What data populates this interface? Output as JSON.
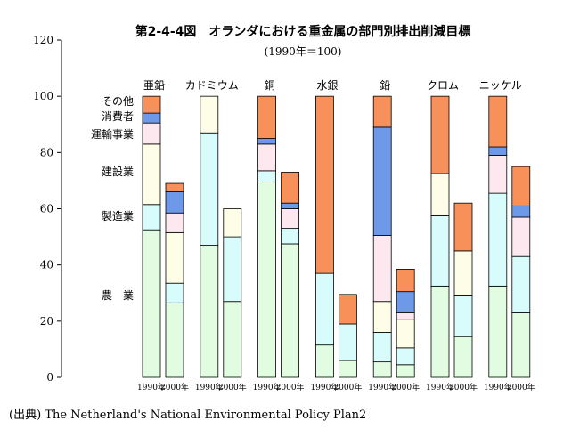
{
  "title": "第2-4-4図　オランダにおける重金属の部門別排出削減目標",
  "subtitle": "(1990年＝100)",
  "source": "(出典) The Netherland's National Environmental Policy Plan2",
  "colors": {
    "農業": "#e2fce2",
    "製造業": "#d8fcfc",
    "建設業": "#fefee8",
    "運輸事業": "#fde8f0",
    "消費者": "#6d99e8",
    "その他": "#f8905a"
  },
  "chart_data": {
    "type": "bar",
    "stacked": true,
    "title": "第2-4-4図　オランダにおける重金属の部門別排出削減目標",
    "subtitle": "(1990年＝100)",
    "ylim": [
      0,
      120
    ],
    "yticks": [
      0,
      20,
      40,
      60,
      80,
      100,
      120
    ],
    "groups": [
      "亜鉛",
      "カドミウム",
      "銅",
      "水銀",
      "鉛",
      "クロム",
      "ニッケル"
    ],
    "years": [
      "1990年",
      "2000年"
    ],
    "series": [
      {
        "name": "農業",
        "values_1990": [
          52.5,
          47,
          69.5,
          11.5,
          5.5,
          32.5,
          32.5
        ],
        "values_2000": [
          26.5,
          27,
          47.5,
          6,
          4.5,
          14.5,
          23
        ]
      },
      {
        "name": "製造業",
        "values_1990": [
          9,
          40,
          4,
          25.5,
          10.5,
          25,
          33
        ],
        "values_2000": [
          7,
          23,
          5.5,
          13,
          6,
          14.5,
          20
        ]
      },
      {
        "name": "建設業",
        "values_1990": [
          21.5,
          13,
          0,
          0,
          11,
          15,
          0
        ],
        "values_2000": [
          18,
          10,
          0,
          0,
          10,
          16,
          0
        ]
      },
      {
        "name": "運輸事業",
        "values_1990": [
          7.5,
          0,
          9.5,
          0,
          23.5,
          0,
          13.5
        ],
        "values_2000": [
          7,
          0,
          7,
          0,
          2.5,
          0,
          14
        ]
      },
      {
        "name": "消費者",
        "values_1990": [
          3.5,
          0,
          2,
          0,
          38.5,
          0,
          3
        ],
        "values_2000": [
          7.5,
          0,
          2,
          0,
          7.5,
          0,
          4
        ]
      },
      {
        "name": "その他",
        "values_1990": [
          6,
          0,
          15,
          63,
          11,
          27.5,
          18
        ],
        "values_2000": [
          3,
          0,
          11,
          10.5,
          8,
          17,
          14
        ]
      }
    ],
    "legend": [
      "その他",
      "消費者",
      "運輸事業",
      "建設業",
      "製造業",
      "農業"
    ],
    "legend_placement": "left, inside plot",
    "grid": false
  }
}
